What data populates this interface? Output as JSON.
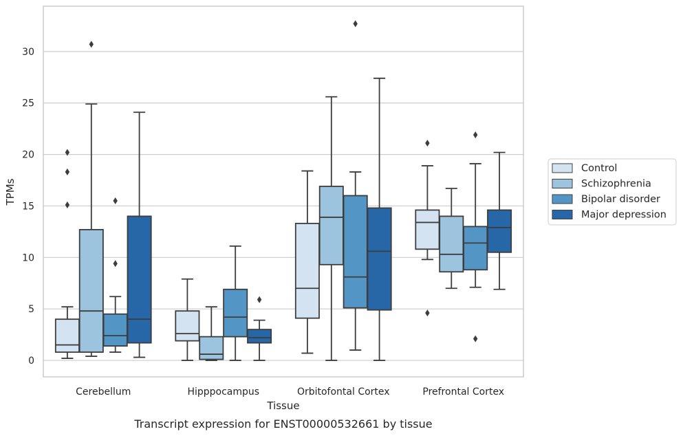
{
  "caption": "Transcript expression for ENST00000532661 by tissue",
  "chart_data": {
    "type": "box",
    "xlabel": "Tissue",
    "ylabel": "TPMs",
    "ylim": [
      -1.6,
      34.4
    ],
    "yticks": [
      0,
      5,
      10,
      15,
      20,
      25,
      30
    ],
    "grid": "horizontal",
    "legend_position": "right",
    "categories": [
      "Cerebellum",
      "Hipppocampus",
      "Orbitofontal Cortex",
      "Prefrontal Cortex"
    ],
    "series": [
      {
        "name": "Control",
        "color": "#d4e3f2",
        "boxes": [
          {
            "whislo": 0.2,
            "q1": 0.8,
            "med": 1.5,
            "q3": 4.0,
            "whishi": 5.2,
            "fliers": [
              15.1,
              18.3,
              20.2
            ]
          },
          {
            "whislo": 0.0,
            "q1": 1.9,
            "med": 2.6,
            "q3": 4.8,
            "whishi": 7.9,
            "fliers": []
          },
          {
            "whislo": 0.7,
            "q1": 4.1,
            "med": 7.0,
            "q3": 13.3,
            "whishi": 18.4,
            "fliers": []
          },
          {
            "whislo": 9.8,
            "q1": 10.8,
            "med": 13.4,
            "q3": 14.6,
            "whishi": 18.9,
            "fliers": [
              4.6,
              21.1
            ]
          }
        ]
      },
      {
        "name": "Schizophrenia",
        "color": "#9dc4de",
        "boxes": [
          {
            "whislo": 0.4,
            "q1": 0.8,
            "med": 4.8,
            "q3": 12.7,
            "whishi": 24.9,
            "fliers": [
              30.7
            ]
          },
          {
            "whislo": 0.0,
            "q1": 0.1,
            "med": 0.6,
            "q3": 2.3,
            "whishi": 5.2,
            "fliers": []
          },
          {
            "whislo": 0.0,
            "q1": 9.3,
            "med": 13.9,
            "q3": 16.9,
            "whishi": 25.6,
            "fliers": []
          },
          {
            "whislo": 7.0,
            "q1": 8.6,
            "med": 10.3,
            "q3": 14.0,
            "whishi": 16.7,
            "fliers": []
          }
        ]
      },
      {
        "name": "Bipolar disorder",
        "color": "#5396c6",
        "boxes": [
          {
            "whislo": 0.8,
            "q1": 1.4,
            "med": 2.4,
            "q3": 4.5,
            "whishi": 6.2,
            "fliers": [
              9.4,
              15.5
            ]
          },
          {
            "whislo": 0.0,
            "q1": 2.3,
            "med": 4.2,
            "q3": 6.9,
            "whishi": 11.1,
            "fliers": []
          },
          {
            "whislo": 1.0,
            "q1": 5.1,
            "med": 8.1,
            "q3": 16.0,
            "whishi": 18.3,
            "fliers": [
              32.7
            ]
          },
          {
            "whislo": 7.1,
            "q1": 8.8,
            "med": 11.4,
            "q3": 13.0,
            "whishi": 19.1,
            "fliers": [
              2.1,
              21.9
            ]
          }
        ]
      },
      {
        "name": "Major depression",
        "color": "#2767a7",
        "boxes": [
          {
            "whislo": 0.3,
            "q1": 1.7,
            "med": 4.0,
            "q3": 14.0,
            "whishi": 24.1,
            "fliers": []
          },
          {
            "whislo": 0.0,
            "q1": 1.7,
            "med": 2.2,
            "q3": 3.0,
            "whishi": 3.9,
            "fliers": [
              5.9
            ]
          },
          {
            "whislo": 0.0,
            "q1": 4.9,
            "med": 10.6,
            "q3": 14.8,
            "whishi": 27.4,
            "fliers": []
          },
          {
            "whislo": 6.9,
            "q1": 10.5,
            "med": 12.9,
            "q3": 14.6,
            "whishi": 20.2,
            "fliers": []
          }
        ]
      }
    ]
  }
}
